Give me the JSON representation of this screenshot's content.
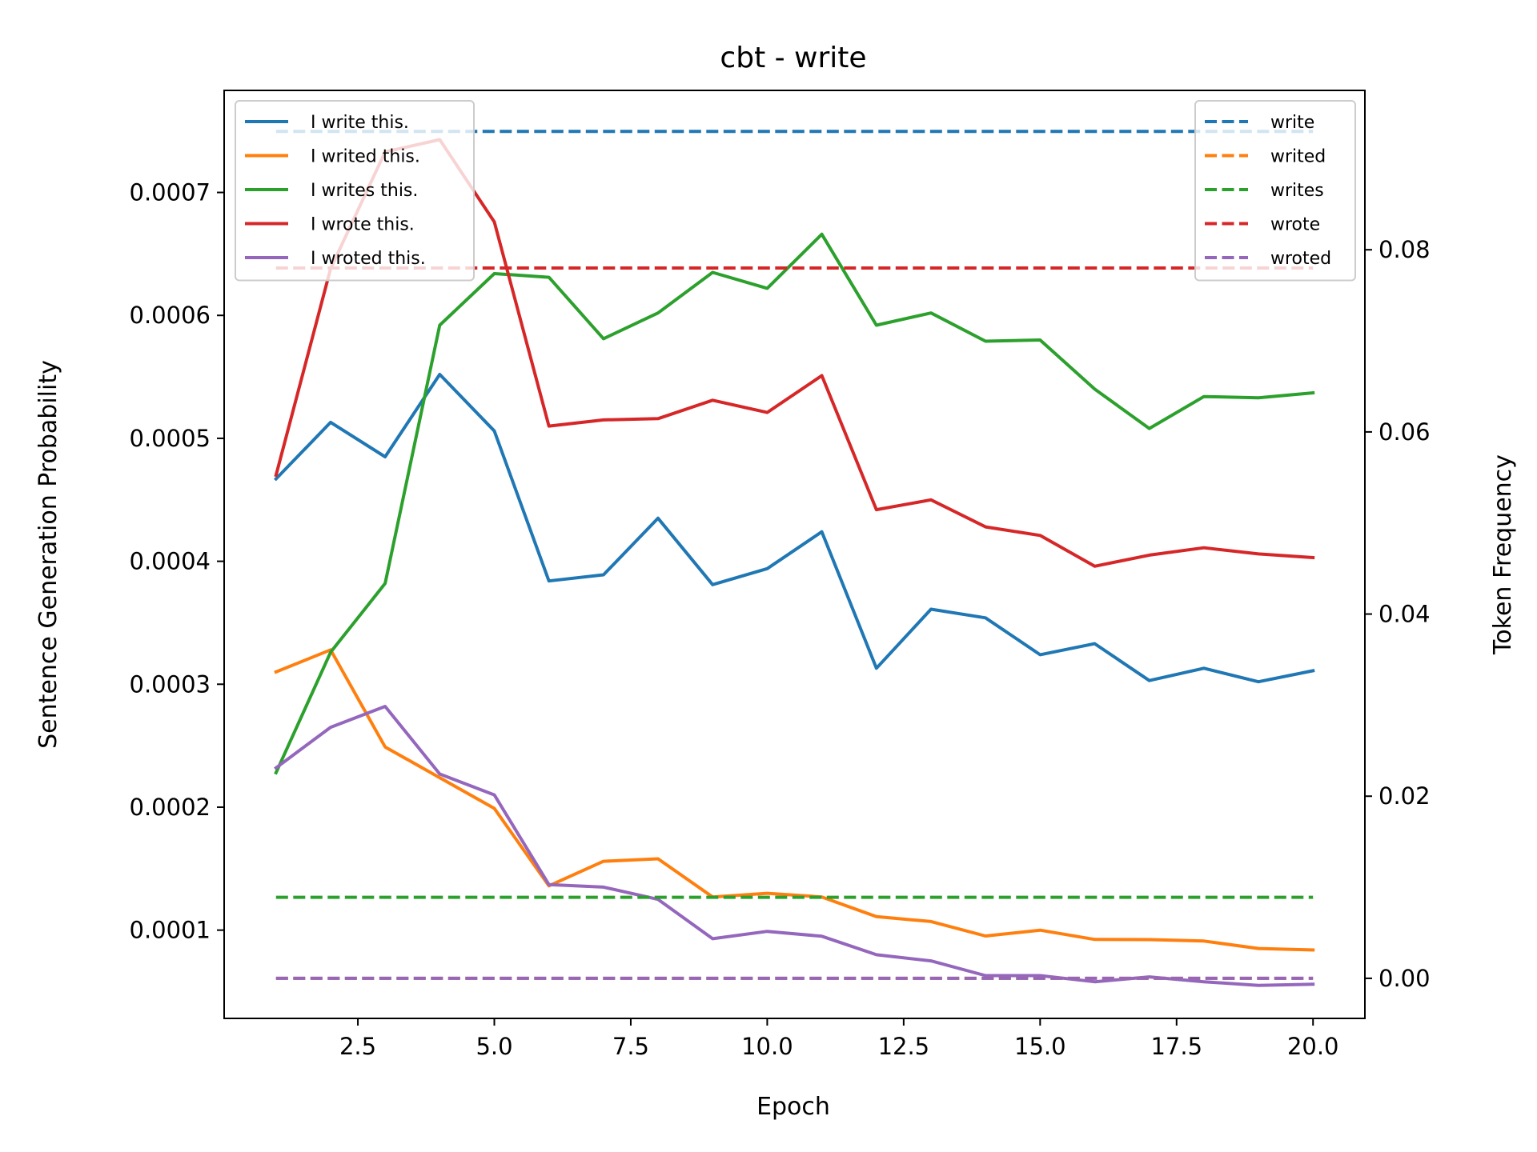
{
  "chart_data": {
    "type": "line",
    "title": "cbt - write",
    "xlabel": "Epoch",
    "ylabel": "Sentence Generation Probability",
    "y2label": "Token Frequency",
    "xlim": [
      0.05,
      20.95
    ],
    "ylim": [
      2.82e-05,
      0.000783
    ],
    "y2lim": [
      -0.0044,
      0.0975
    ],
    "x_ticks": [
      2.5,
      5.0,
      7.5,
      10.0,
      12.5,
      15.0,
      17.5,
      20.0
    ],
    "x_tick_labels": [
      "2.5",
      "5.0",
      "7.5",
      "10.0",
      "12.5",
      "15.0",
      "17.5",
      "20.0"
    ],
    "y_ticks": [
      0.0001,
      0.0002,
      0.0003,
      0.0004,
      0.0005,
      0.0006,
      0.0007
    ],
    "y_tick_labels": [
      "0.0001",
      "0.0002",
      "0.0003",
      "0.0004",
      "0.0005",
      "0.0006",
      "0.0007"
    ],
    "y2_ticks": [
      0.0,
      0.02,
      0.04,
      0.06,
      0.08
    ],
    "y2_tick_labels": [
      "0.00",
      "0.02",
      "0.04",
      "0.06",
      "0.08"
    ],
    "grid": false,
    "legend_left_position": "upper-left",
    "legend_right_position": "upper-right",
    "x": [
      1,
      2,
      3,
      4,
      5,
      6,
      7,
      8,
      9,
      10,
      11,
      12,
      13,
      14,
      15,
      16,
      17,
      18,
      19,
      20
    ],
    "series": [
      {
        "name": "I write this.",
        "color": "#1f77b4",
        "axis": "left",
        "style": "solid",
        "values": [
          0.000467,
          0.000513,
          0.000485,
          0.000552,
          0.000506,
          0.000384,
          0.000389,
          0.000435,
          0.000381,
          0.000394,
          0.000424,
          0.000313,
          0.000361,
          0.000354,
          0.000324,
          0.000333,
          0.000303,
          0.000313,
          0.000302,
          0.000311
        ]
      },
      {
        "name": "I writed this.",
        "color": "#ff7f0e",
        "axis": "left",
        "style": "solid",
        "values": [
          0.00031,
          0.000328,
          0.000249,
          0.000224,
          0.000199,
          0.000136,
          0.000156,
          0.000158,
          0.000127,
          0.00013,
          0.000127,
          0.000111,
          0.000107,
          9.52e-05,
          0.0001,
          9.24e-05,
          9.23e-05,
          9.11e-05,
          8.51e-05,
          8.39e-05
        ]
      },
      {
        "name": "I writes this.",
        "color": "#2ca02c",
        "axis": "left",
        "style": "solid",
        "values": [
          0.000228,
          0.000326,
          0.000382,
          0.000592,
          0.000634,
          0.000631,
          0.000581,
          0.000602,
          0.000635,
          0.000622,
          0.000666,
          0.000592,
          0.000602,
          0.000579,
          0.00058,
          0.00054,
          0.000508,
          0.000534,
          0.000533,
          0.000537
        ]
      },
      {
        "name": "I wrote this.",
        "color": "#d62728",
        "axis": "left",
        "style": "solid",
        "values": [
          0.00047,
          0.000638,
          0.000733,
          0.000743,
          0.000676,
          0.00051,
          0.000515,
          0.000516,
          0.000531,
          0.000521,
          0.000551,
          0.000442,
          0.00045,
          0.000428,
          0.000421,
          0.000396,
          0.000405,
          0.000411,
          0.000406,
          0.000403
        ]
      },
      {
        "name": "I wroted this.",
        "color": "#9467bd",
        "axis": "left",
        "style": "solid",
        "values": [
          0.000232,
          0.000265,
          0.000282,
          0.000227,
          0.00021,
          0.000137,
          0.000135,
          0.000125,
          9.3e-05,
          9.9e-05,
          9.5e-05,
          8e-05,
          7.5e-05,
          6.3e-05,
          6.3e-05,
          5.8e-05,
          6.2e-05,
          5.8e-05,
          5.5e-05,
          5.6e-05
        ]
      },
      {
        "name": "write",
        "color": "#1f77b4",
        "axis": "right",
        "style": "dashed",
        "values": [
          0.093,
          0.093,
          0.093,
          0.093,
          0.093,
          0.093,
          0.093,
          0.093,
          0.093,
          0.093,
          0.093,
          0.093,
          0.093,
          0.093,
          0.093,
          0.093,
          0.093,
          0.093,
          0.093,
          0.093
        ]
      },
      {
        "name": "writed",
        "color": "#ff7f0e",
        "axis": "right",
        "style": "dashed",
        "values": [
          0.0,
          0.0,
          0.0,
          0.0,
          0.0,
          0.0,
          0.0,
          0.0,
          0.0,
          0.0,
          0.0,
          0.0,
          0.0,
          0.0,
          0.0,
          0.0,
          0.0,
          0.0,
          0.0,
          0.0
        ]
      },
      {
        "name": "writes",
        "color": "#2ca02c",
        "axis": "right",
        "style": "dashed",
        "values": [
          0.0089,
          0.0089,
          0.0089,
          0.0089,
          0.0089,
          0.0089,
          0.0089,
          0.0089,
          0.0089,
          0.0089,
          0.0089,
          0.0089,
          0.0089,
          0.0089,
          0.0089,
          0.0089,
          0.0089,
          0.0089,
          0.0089,
          0.0089
        ]
      },
      {
        "name": "wrote",
        "color": "#d62728",
        "axis": "right",
        "style": "dashed",
        "values": [
          0.078,
          0.078,
          0.078,
          0.078,
          0.078,
          0.078,
          0.078,
          0.078,
          0.078,
          0.078,
          0.078,
          0.078,
          0.078,
          0.078,
          0.078,
          0.078,
          0.078,
          0.078,
          0.078,
          0.078
        ]
      },
      {
        "name": "wroted",
        "color": "#9467bd",
        "axis": "right",
        "style": "dashed",
        "values": [
          0.0,
          0.0,
          0.0,
          0.0,
          0.0,
          0.0,
          0.0,
          0.0,
          0.0,
          0.0,
          0.0,
          0.0,
          0.0,
          0.0,
          0.0,
          0.0,
          0.0,
          0.0,
          0.0,
          0.0
        ]
      }
    ]
  }
}
